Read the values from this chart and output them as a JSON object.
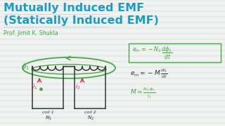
{
  "bg_color": "#f0f2f0",
  "title_line1": "Mutually Induced EMF",
  "title_line2": "(Statically Induced EMF)",
  "title_color": "#1a9cc9",
  "author": "Prof. Jimit K. Shukla",
  "author_color": "#4aaa44",
  "coil_color": "#333333",
  "green_color": "#44aa44",
  "red_color": "#cc3355",
  "line_color": "#c5d0d8",
  "box_color": "#44aa44",
  "formula1_color": "#44aa44",
  "formula2_color": "#333333",
  "formula3_color": "#44aa44"
}
